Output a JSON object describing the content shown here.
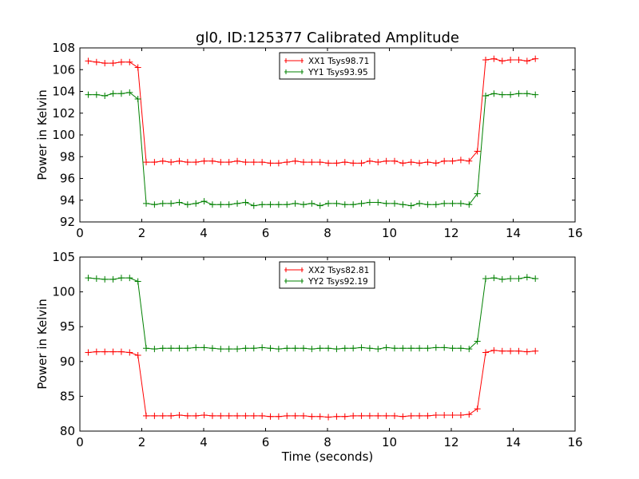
{
  "chart_data": [
    {
      "type": "line",
      "title": "gl0, ID:125377 Calibrated Amplitude",
      "xlabel": "",
      "ylabel": "Power in Kelvin",
      "xlim": [
        0,
        16
      ],
      "ylim": [
        92,
        108
      ],
      "xticks": [
        "0",
        "2",
        "4",
        "6",
        "8",
        "10",
        "12",
        "14",
        "16"
      ],
      "yticks": [
        "92",
        "94",
        "96",
        "98",
        "100",
        "102",
        "104",
        "106",
        "108"
      ],
      "legend_position": "top-center",
      "x_start": 0.27,
      "x_step": 0.2675,
      "series": [
        {
          "name": "XX1 Tsys98.71",
          "color": "#ff0000",
          "values": [
            106.8,
            106.7,
            106.6,
            106.6,
            106.7,
            106.7,
            106.2,
            97.5,
            97.5,
            97.6,
            97.5,
            97.6,
            97.5,
            97.5,
            97.6,
            97.6,
            97.5,
            97.5,
            97.6,
            97.5,
            97.5,
            97.5,
            97.4,
            97.4,
            97.5,
            97.6,
            97.5,
            97.5,
            97.5,
            97.4,
            97.4,
            97.5,
            97.4,
            97.4,
            97.6,
            97.5,
            97.6,
            97.6,
            97.4,
            97.5,
            97.4,
            97.5,
            97.4,
            97.6,
            97.6,
            97.7,
            97.6,
            98.5,
            106.9,
            107.0,
            106.8,
            106.9,
            106.9,
            106.8,
            107.0
          ]
        },
        {
          "name": "YY1 Tsys93.95",
          "color": "#008000",
          "values": [
            103.7,
            103.7,
            103.6,
            103.8,
            103.8,
            103.9,
            103.3,
            93.7,
            93.6,
            93.7,
            93.7,
            93.8,
            93.6,
            93.7,
            93.9,
            93.6,
            93.6,
            93.6,
            93.7,
            93.8,
            93.5,
            93.6,
            93.6,
            93.6,
            93.6,
            93.7,
            93.6,
            93.7,
            93.5,
            93.7,
            93.7,
            93.6,
            93.6,
            93.7,
            93.8,
            93.8,
            93.7,
            93.7,
            93.6,
            93.5,
            93.7,
            93.6,
            93.6,
            93.7,
            93.7,
            93.7,
            93.6,
            94.6,
            103.6,
            103.8,
            103.7,
            103.7,
            103.8,
            103.8,
            103.7
          ]
        }
      ]
    },
    {
      "type": "line",
      "title": "",
      "xlabel": "Time (seconds)",
      "ylabel": "Power in Kelvin",
      "xlim": [
        0,
        16
      ],
      "ylim": [
        80,
        105
      ],
      "xticks": [
        "0",
        "2",
        "4",
        "6",
        "8",
        "10",
        "12",
        "14",
        "16"
      ],
      "yticks": [
        "80",
        "85",
        "90",
        "95",
        "100",
        "105"
      ],
      "legend_position": "top-center",
      "x_start": 0.27,
      "x_step": 0.2675,
      "series": [
        {
          "name": "XX2 Tsys82.81",
          "color": "#ff0000",
          "values": [
            91.3,
            91.4,
            91.4,
            91.4,
            91.4,
            91.3,
            90.9,
            82.2,
            82.2,
            82.2,
            82.2,
            82.3,
            82.2,
            82.2,
            82.3,
            82.2,
            82.2,
            82.2,
            82.2,
            82.2,
            82.2,
            82.2,
            82.1,
            82.1,
            82.2,
            82.2,
            82.2,
            82.1,
            82.1,
            82.0,
            82.1,
            82.1,
            82.2,
            82.2,
            82.2,
            82.2,
            82.2,
            82.2,
            82.1,
            82.2,
            82.2,
            82.2,
            82.3,
            82.3,
            82.3,
            82.3,
            82.4,
            83.2,
            91.3,
            91.6,
            91.5,
            91.5,
            91.5,
            91.4,
            91.5
          ]
        },
        {
          "name": "YY2 Tsys92.19",
          "color": "#008000",
          "values": [
            102.0,
            101.9,
            101.8,
            101.8,
            102.0,
            102.0,
            101.5,
            91.9,
            91.8,
            91.9,
            91.9,
            91.9,
            91.9,
            92.0,
            92.0,
            91.9,
            91.8,
            91.8,
            91.8,
            91.9,
            91.9,
            92.0,
            91.9,
            91.8,
            91.9,
            91.9,
            91.9,
            91.8,
            91.9,
            91.9,
            91.8,
            91.9,
            91.9,
            92.0,
            91.9,
            91.8,
            92.0,
            91.9,
            91.9,
            91.9,
            91.9,
            91.9,
            92.0,
            92.0,
            91.9,
            91.9,
            91.8,
            92.9,
            101.9,
            102.0,
            101.8,
            101.9,
            101.9,
            102.1,
            101.9
          ]
        }
      ]
    }
  ]
}
